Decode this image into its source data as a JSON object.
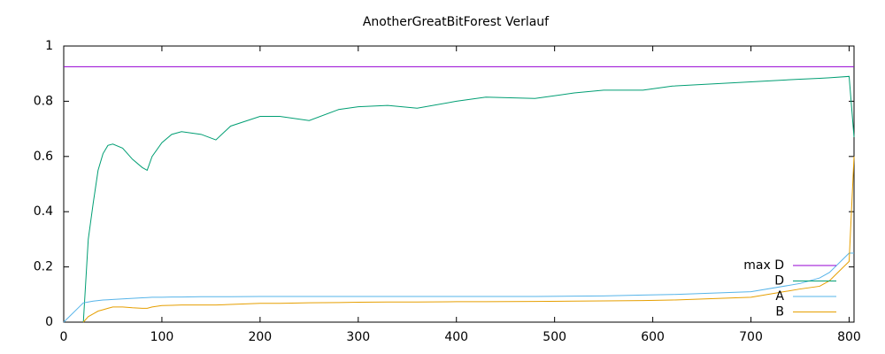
{
  "chart_data": {
    "type": "line",
    "title": "AnotherGreatBitForest Verlauf",
    "x": [
      0,
      20,
      25,
      30,
      35,
      40,
      45,
      50,
      60,
      70,
      80,
      85,
      90,
      100,
      110,
      120,
      140,
      155,
      170,
      200,
      220,
      250,
      280,
      300,
      330,
      360,
      400,
      430,
      480,
      520,
      550,
      590,
      620,
      700,
      750,
      770,
      780,
      800,
      805
    ],
    "series": [
      {
        "name": "max D",
        "color": "#9400d3",
        "values": [
          0.925,
          0.925,
          0.925,
          0.925,
          0.925,
          0.925,
          0.925,
          0.925,
          0.925,
          0.925,
          0.925,
          0.925,
          0.925,
          0.925,
          0.925,
          0.925,
          0.925,
          0.925,
          0.925,
          0.925,
          0.925,
          0.925,
          0.925,
          0.925,
          0.925,
          0.925,
          0.925,
          0.925,
          0.925,
          0.925,
          0.925,
          0.925,
          0.925,
          0.925,
          0.925,
          0.925,
          0.925,
          0.925,
          0.925
        ]
      },
      {
        "name": "D",
        "color": "#009e73",
        "values": [
          null,
          0,
          0.3,
          0.43,
          0.55,
          0.61,
          0.64,
          0.645,
          0.63,
          0.59,
          0.56,
          0.55,
          0.6,
          0.65,
          0.68,
          0.69,
          0.68,
          0.66,
          0.71,
          0.745,
          0.745,
          0.73,
          0.77,
          0.78,
          0.785,
          0.775,
          0.8,
          0.815,
          0.81,
          0.83,
          0.84,
          0.84,
          0.855,
          0.87,
          0.88,
          0.883,
          0.885,
          0.89,
          0.67
        ]
      },
      {
        "name": "A",
        "color": "#56b4e9",
        "values": [
          0,
          0.07,
          0.073,
          0.076,
          0.078,
          0.08,
          0.081,
          0.082,
          0.084,
          0.086,
          0.088,
          0.089,
          0.09,
          0.09,
          0.091,
          0.091,
          0.092,
          0.092,
          0.092,
          0.093,
          0.093,
          0.093,
          0.093,
          0.093,
          0.093,
          0.093,
          0.093,
          0.093,
          0.093,
          0.094,
          0.095,
          0.098,
          0.1,
          0.11,
          0.14,
          0.16,
          0.18,
          0.25,
          0.25
        ]
      },
      {
        "name": "B",
        "color": "#e69f00",
        "values": [
          null,
          0,
          0.02,
          0.03,
          0.04,
          0.045,
          0.05,
          0.055,
          0.055,
          0.052,
          0.05,
          0.05,
          0.055,
          0.06,
          0.061,
          0.062,
          0.062,
          0.062,
          0.064,
          0.068,
          0.068,
          0.07,
          0.071,
          0.072,
          0.073,
          0.073,
          0.074,
          0.074,
          0.075,
          0.076,
          0.077,
          0.078,
          0.08,
          0.09,
          0.12,
          0.13,
          0.15,
          0.22,
          0.6
        ]
      }
    ],
    "xlim": [
      0,
      805
    ],
    "ylim": [
      0,
      1
    ],
    "xticks": [
      0,
      100,
      200,
      300,
      400,
      500,
      600,
      700,
      800
    ],
    "yticks": [
      0,
      0.2,
      0.4,
      0.6,
      0.8,
      1
    ],
    "legend": "bottom-right"
  }
}
